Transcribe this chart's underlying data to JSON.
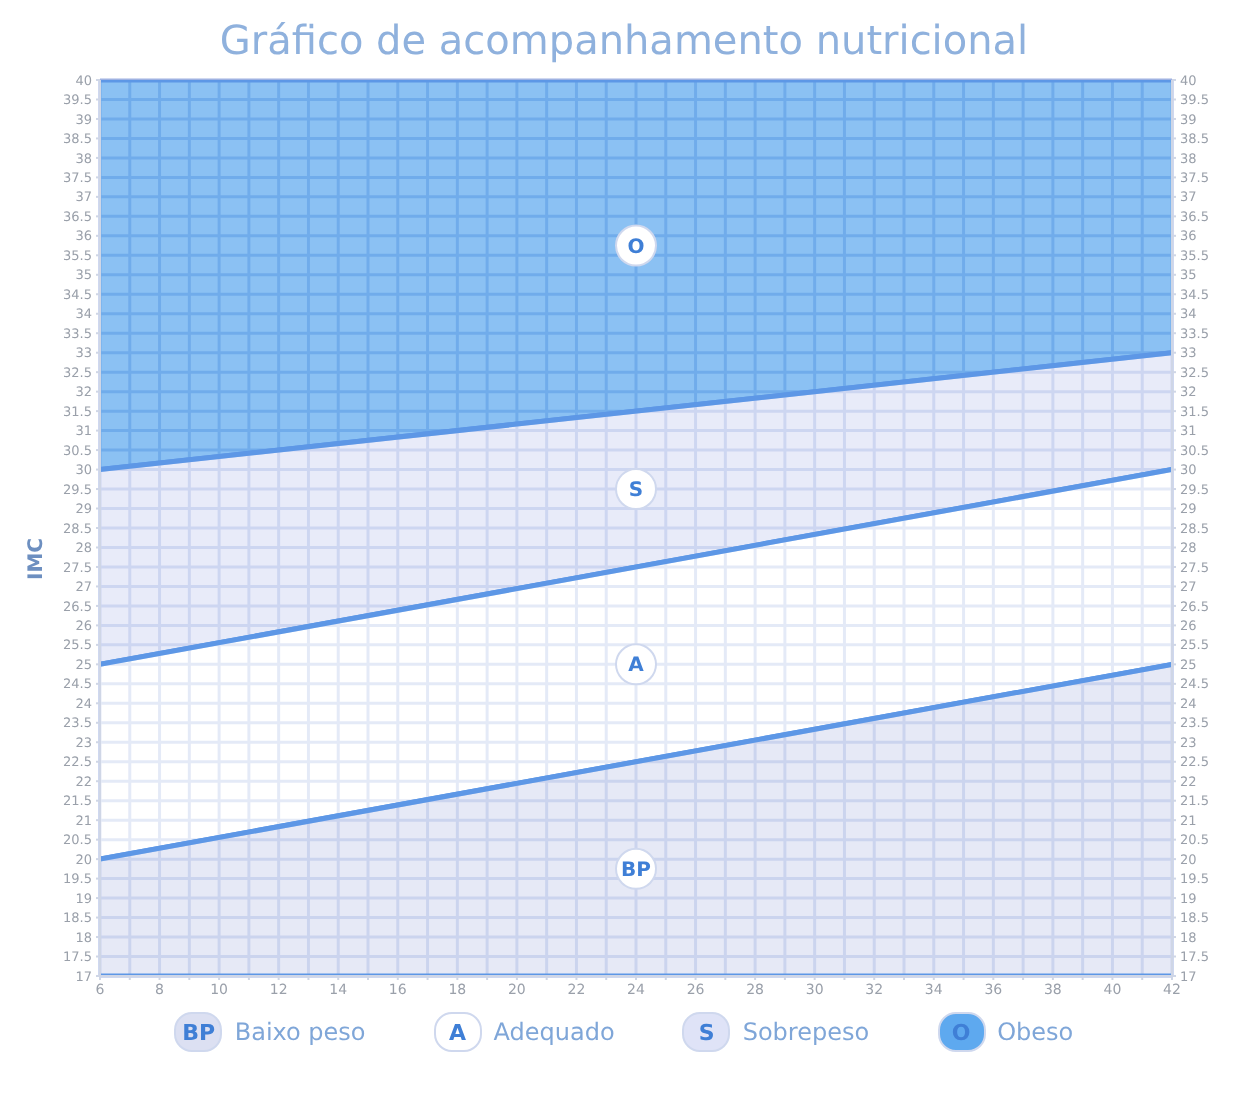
{
  "chart_data": {
    "type": "area",
    "title": "Gráfico de acompanhamento nutricional",
    "ylabel": "IMC",
    "x": [
      6,
      42
    ],
    "series": [
      {
        "name": "Baixo peso",
        "color": "#dce0f2",
        "values": [
          20,
          25
        ]
      },
      {
        "name": "Adequado",
        "color": "#ffffff",
        "values": [
          25,
          30
        ]
      },
      {
        "name": "Sobrepeso",
        "color": "#dfe3f7",
        "values": [
          30,
          33
        ]
      },
      {
        "name": "Obeso",
        "color": "#5ea9ef",
        "values": [
          40,
          40
        ]
      }
    ],
    "annotations": [
      "BP",
      "A",
      "S",
      "O"
    ],
    "xlim": [
      6,
      42
    ],
    "xticks": [
      6,
      {
        "value": 7,
        "label": null
      },
      8,
      {
        "value": 9,
        "label": null
      },
      10,
      {
        "value": 11,
        "label": null
      },
      12,
      {
        "value": 13,
        "label": null
      },
      14,
      {
        "value": 15,
        "label": null
      },
      16,
      {
        "value": 17,
        "label": null
      },
      18,
      {
        "value": 19,
        "label": null
      },
      20,
      {
        "value": 21,
        "label": null
      },
      22,
      {
        "value": 23,
        "label": null
      },
      24,
      {
        "value": 25,
        "label": null
      },
      26,
      {
        "value": 27,
        "label": null
      },
      28,
      {
        "value": 29,
        "label": null
      },
      30,
      {
        "value": 31,
        "label": null
      },
      32,
      {
        "value": 33,
        "label": null
      },
      34,
      {
        "value": 35,
        "label": null
      },
      36,
      {
        "value": 37,
        "label": null
      },
      38,
      {
        "value": 39,
        "label": null
      },
      40,
      {
        "value": 41,
        "label": null
      },
      42
    ],
    "ylim": [
      17,
      40
    ],
    "yticks": [
      17,
      17.5,
      18,
      18.5,
      19,
      19.5,
      20,
      20.5,
      21,
      21.5,
      22,
      22.5,
      23,
      23.5,
      24,
      24.5,
      25,
      25.5,
      26,
      26.5,
      27,
      27.5,
      28,
      28.5,
      29,
      29.5,
      30,
      30.5,
      31,
      31.5,
      32,
      32.5,
      33,
      33.5,
      34,
      34.5,
      35,
      35.5,
      36,
      36.5,
      37,
      37.5,
      38,
      38.5,
      39,
      39.5,
      40
    ],
    "y2lim": [
      17,
      40
    ],
    "y2ticks": [
      17,
      17.5,
      18,
      18.5,
      19,
      19.5,
      20,
      20.5,
      21,
      21.5,
      22,
      22.5,
      23,
      23.5,
      24,
      24.5,
      25,
      25.5,
      26,
      26.5,
      27,
      27.5,
      28,
      28.5,
      29,
      29.5,
      30,
      30.5,
      31,
      31.5,
      32,
      32.5,
      33,
      33.5,
      34,
      34.5,
      35,
      35.5,
      36,
      36.5,
      37,
      37.5,
      38,
      38.5,
      39,
      39.5,
      40
    ],
    "grid": true,
    "legend": "bottom",
    "line_style": "solid"
  }
}
